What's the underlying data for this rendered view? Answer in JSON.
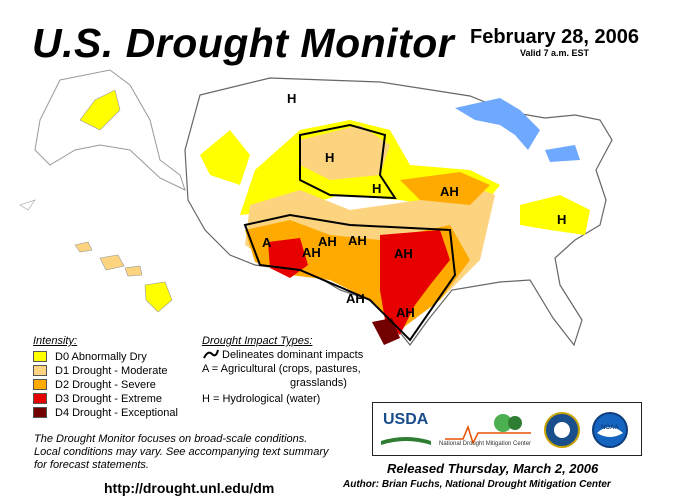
{
  "header": {
    "title": "U.S. Drought Monitor",
    "date": "February 28, 2006",
    "valid": "Valid 7 a.m. EST"
  },
  "colors": {
    "D0": "#ffff00",
    "D1": "#fcd37f",
    "D2": "#ffaa00",
    "D3": "#e60000",
    "D4": "#730000",
    "water": "#6ea8ff",
    "state_border": "#999999",
    "impact_line": "#000000"
  },
  "map": {
    "impact_labels": [
      "H",
      "H",
      "H",
      "AH",
      "AH",
      "AH",
      "A",
      "AH",
      "AH",
      "AH",
      "H",
      "AH"
    ]
  },
  "legend": {
    "heading": "Intensity:",
    "items": [
      {
        "code": "D0",
        "label": "D0 Abnormally Dry"
      },
      {
        "code": "D1",
        "label": "D1 Drought - Moderate"
      },
      {
        "code": "D2",
        "label": "D2 Drought - Severe"
      },
      {
        "code": "D3",
        "label": "D3 Drought - Extreme"
      },
      {
        "code": "D4",
        "label": "D4 Drought - Exceptional"
      }
    ]
  },
  "impacts": {
    "heading": "Drought Impact Types:",
    "line_desc": "Delineates dominant impacts",
    "a_line1": "A = Agricultural (crops, pastures,",
    "a_line2": "grasslands)",
    "h_line": "H = Hydrological (water)"
  },
  "note": {
    "line1": "The Drought Monitor focuses on broad-scale conditions.",
    "line2": "Local conditions may vary.  See accompanying text summary",
    "line3": "for forecast statements."
  },
  "logos": {
    "usda": "USDA",
    "ndmc": "National Drought Mitigation Center",
    "noaa": "NOAA"
  },
  "footer": {
    "released": "Released Thursday, March 2, 2006",
    "author": "Author: Brian Fuchs, National Drought Mitigation Center",
    "url": "http://drought.unl.edu/dm"
  }
}
